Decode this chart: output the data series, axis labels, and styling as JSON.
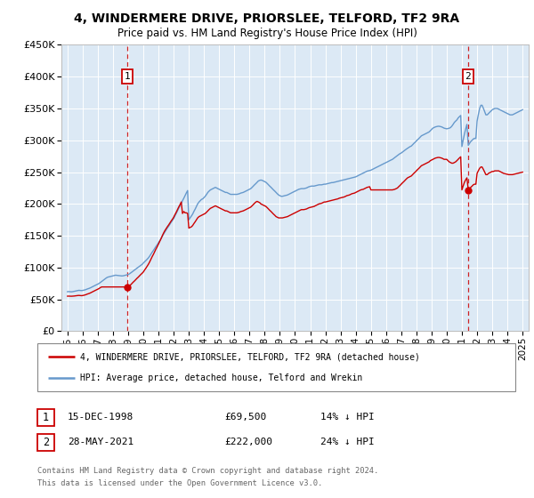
{
  "title": "4, WINDERMERE DRIVE, PRIORSLEE, TELFORD, TF2 9RA",
  "subtitle": "Price paid vs. HM Land Registry's House Price Index (HPI)",
  "sale1_year": 1998.96,
  "sale1_price": 69500,
  "sale2_year": 2021.41,
  "sale2_price": 222000,
  "legend_line1": "4, WINDERMERE DRIVE, PRIORSLEE, TELFORD, TF2 9RA (detached house)",
  "legend_line2": "HPI: Average price, detached house, Telford and Wrekin",
  "table_row1_date": "15-DEC-1998",
  "table_row1_price": "£69,500",
  "table_row1_hpi": "14% ↓ HPI",
  "table_row2_date": "28-MAY-2021",
  "table_row2_price": "£222,000",
  "table_row2_hpi": "24% ↓ HPI",
  "footer1": "Contains HM Land Registry data © Crown copyright and database right 2024.",
  "footer2": "This data is licensed under the Open Government Licence v3.0.",
  "chart_bg": "#dce9f5",
  "red_color": "#cc0000",
  "blue_color": "#6699cc",
  "box_color": "#cc0000",
  "vline_color": "#cc0000",
  "grid_color": "#ffffff",
  "hpi_x": [
    1995.0,
    1995.08,
    1995.17,
    1995.25,
    1995.33,
    1995.42,
    1995.5,
    1995.58,
    1995.67,
    1995.75,
    1995.83,
    1995.92,
    1996.0,
    1996.08,
    1996.17,
    1996.25,
    1996.33,
    1996.42,
    1996.5,
    1996.58,
    1996.67,
    1996.75,
    1996.83,
    1996.92,
    1997.0,
    1997.08,
    1997.17,
    1997.25,
    1997.33,
    1997.42,
    1997.5,
    1997.58,
    1997.67,
    1997.75,
    1997.83,
    1997.92,
    1998.0,
    1998.08,
    1998.17,
    1998.25,
    1998.33,
    1998.42,
    1998.5,
    1998.58,
    1998.67,
    1998.75,
    1998.83,
    1998.92,
    1999.0,
    1999.08,
    1999.17,
    1999.25,
    1999.33,
    1999.42,
    1999.5,
    1999.58,
    1999.67,
    1999.75,
    1999.83,
    1999.92,
    2000.0,
    2000.08,
    2000.17,
    2000.25,
    2000.33,
    2000.42,
    2000.5,
    2000.58,
    2000.67,
    2000.75,
    2000.83,
    2000.92,
    2001.0,
    2001.08,
    2001.17,
    2001.25,
    2001.33,
    2001.42,
    2001.5,
    2001.58,
    2001.67,
    2001.75,
    2001.83,
    2001.92,
    2002.0,
    2002.08,
    2002.17,
    2002.25,
    2002.33,
    2002.42,
    2002.5,
    2002.58,
    2002.67,
    2002.75,
    2002.83,
    2002.92,
    2003.0,
    2003.08,
    2003.17,
    2003.25,
    2003.33,
    2003.42,
    2003.5,
    2003.58,
    2003.67,
    2003.75,
    2003.83,
    2003.92,
    2004.0,
    2004.08,
    2004.17,
    2004.25,
    2004.33,
    2004.42,
    2004.5,
    2004.58,
    2004.67,
    2004.75,
    2004.83,
    2004.92,
    2005.0,
    2005.08,
    2005.17,
    2005.25,
    2005.33,
    2005.42,
    2005.5,
    2005.58,
    2005.67,
    2005.75,
    2005.83,
    2005.92,
    2006.0,
    2006.08,
    2006.17,
    2006.25,
    2006.33,
    2006.42,
    2006.5,
    2006.58,
    2006.67,
    2006.75,
    2006.83,
    2006.92,
    2007.0,
    2007.08,
    2007.17,
    2007.25,
    2007.33,
    2007.42,
    2007.5,
    2007.58,
    2007.67,
    2007.75,
    2007.83,
    2007.92,
    2008.0,
    2008.08,
    2008.17,
    2008.25,
    2008.33,
    2008.42,
    2008.5,
    2008.58,
    2008.67,
    2008.75,
    2008.83,
    2008.92,
    2009.0,
    2009.08,
    2009.17,
    2009.25,
    2009.33,
    2009.42,
    2009.5,
    2009.58,
    2009.67,
    2009.75,
    2009.83,
    2009.92,
    2010.0,
    2010.08,
    2010.17,
    2010.25,
    2010.33,
    2010.42,
    2010.5,
    2010.58,
    2010.67,
    2010.75,
    2010.83,
    2010.92,
    2011.0,
    2011.08,
    2011.17,
    2011.25,
    2011.33,
    2011.42,
    2011.5,
    2011.58,
    2011.67,
    2011.75,
    2011.83,
    2011.92,
    2012.0,
    2012.08,
    2012.17,
    2012.25,
    2012.33,
    2012.42,
    2012.5,
    2012.58,
    2012.67,
    2012.75,
    2012.83,
    2012.92,
    2013.0,
    2013.08,
    2013.17,
    2013.25,
    2013.33,
    2013.42,
    2013.5,
    2013.58,
    2013.67,
    2013.75,
    2013.83,
    2013.92,
    2014.0,
    2014.08,
    2014.17,
    2014.25,
    2014.33,
    2014.42,
    2014.5,
    2014.58,
    2014.67,
    2014.75,
    2014.83,
    2014.92,
    2015.0,
    2015.08,
    2015.17,
    2015.25,
    2015.33,
    2015.42,
    2015.5,
    2015.58,
    2015.67,
    2015.75,
    2015.83,
    2015.92,
    2016.0,
    2016.08,
    2016.17,
    2016.25,
    2016.33,
    2016.42,
    2016.5,
    2016.58,
    2016.67,
    2016.75,
    2016.83,
    2016.92,
    2017.0,
    2017.08,
    2017.17,
    2017.25,
    2017.33,
    2017.42,
    2017.5,
    2017.58,
    2017.67,
    2017.75,
    2017.83,
    2017.92,
    2018.0,
    2018.08,
    2018.17,
    2018.25,
    2018.33,
    2018.42,
    2018.5,
    2018.58,
    2018.67,
    2018.75,
    2018.83,
    2018.92,
    2019.0,
    2019.08,
    2019.17,
    2019.25,
    2019.33,
    2019.42,
    2019.5,
    2019.58,
    2019.67,
    2019.75,
    2019.83,
    2019.92,
    2020.0,
    2020.08,
    2020.17,
    2020.25,
    2020.33,
    2020.42,
    2020.5,
    2020.58,
    2020.67,
    2020.75,
    2020.83,
    2020.92,
    2021.0,
    2021.08,
    2021.17,
    2021.25,
    2021.33,
    2021.42,
    2021.5,
    2021.58,
    2021.67,
    2021.75,
    2021.83,
    2021.92,
    2022.0,
    2022.08,
    2022.17,
    2022.25,
    2022.33,
    2022.42,
    2022.5,
    2022.58,
    2022.67,
    2022.75,
    2022.83,
    2022.92,
    2023.0,
    2023.08,
    2023.17,
    2023.25,
    2023.33,
    2023.42,
    2023.5,
    2023.58,
    2023.67,
    2023.75,
    2023.83,
    2023.92,
    2024.0,
    2024.08,
    2024.17,
    2024.25,
    2024.33,
    2024.42,
    2024.5,
    2024.58,
    2024.67,
    2024.75,
    2024.83,
    2024.92,
    2025.0
  ],
  "hpi_y": [
    62000,
    62200,
    62000,
    61800,
    62000,
    62500,
    63000,
    63500,
    64000,
    64200,
    64000,
    63800,
    64000,
    64500,
    65000,
    65800,
    66500,
    67200,
    68000,
    69000,
    70000,
    71000,
    72000,
    73000,
    74000,
    75000,
    76500,
    78000,
    79500,
    81000,
    82500,
    84000,
    85000,
    85500,
    86000,
    86500,
    87000,
    87500,
    88000,
    87800,
    87500,
    87200,
    87000,
    86800,
    87000,
    87500,
    88000,
    88500,
    89000,
    90000,
    91500,
    93000,
    94500,
    96000,
    97500,
    99000,
    100500,
    102000,
    103500,
    105000,
    107000,
    109000,
    111000,
    113000,
    115000,
    118000,
    121000,
    124000,
    127000,
    130000,
    133000,
    136000,
    139000,
    142000,
    145500,
    149000,
    152500,
    156000,
    159000,
    162000,
    165000,
    168000,
    171000,
    174000,
    177000,
    181000,
    185000,
    189000,
    193000,
    197000,
    201000,
    205000,
    209000,
    213000,
    217000,
    221000,
    175000,
    178000,
    181000,
    184000,
    188000,
    192000,
    196000,
    200000,
    203000,
    205000,
    207000,
    208000,
    210000,
    212000,
    215000,
    218000,
    220000,
    222000,
    223000,
    224000,
    225000,
    226000,
    225000,
    224000,
    223000,
    222000,
    221000,
    220000,
    219000,
    218000,
    218000,
    217000,
    216000,
    215000,
    215000,
    215000,
    215000,
    215000,
    215000,
    215500,
    216000,
    217000,
    217500,
    218000,
    219000,
    220000,
    221000,
    222000,
    223000,
    224000,
    226000,
    228000,
    230000,
    232000,
    234000,
    236000,
    237000,
    237500,
    237000,
    236000,
    235000,
    234000,
    232000,
    230000,
    228000,
    226000,
    224000,
    222000,
    220000,
    218000,
    216000,
    214000,
    213000,
    212000,
    212000,
    212500,
    213000,
    213500,
    214000,
    215000,
    216000,
    217000,
    218000,
    219000,
    220000,
    221000,
    222000,
    223000,
    223500,
    224000,
    224000,
    224000,
    224500,
    225000,
    226000,
    227000,
    227500,
    228000,
    228000,
    228000,
    228500,
    229000,
    229500,
    230000,
    230000,
    230000,
    230500,
    231000,
    231000,
    231500,
    232000,
    232500,
    233000,
    233500,
    233500,
    234000,
    234500,
    235000,
    235500,
    236000,
    236500,
    237000,
    237500,
    238000,
    238500,
    239000,
    239500,
    240000,
    240500,
    241000,
    241500,
    242000,
    242500,
    243500,
    244500,
    245500,
    246500,
    247500,
    248500,
    249500,
    250500,
    251500,
    252000,
    252500,
    253000,
    254000,
    255000,
    256000,
    257000,
    258000,
    259000,
    260000,
    261000,
    262000,
    263000,
    264000,
    265000,
    266000,
    267000,
    268000,
    269000,
    270000,
    271500,
    273000,
    274500,
    276000,
    277500,
    279000,
    280000,
    281500,
    283000,
    284500,
    286000,
    287500,
    289000,
    290000,
    291000,
    293000,
    295000,
    297000,
    299000,
    301000,
    303000,
    305000,
    307000,
    308000,
    309000,
    310000,
    311000,
    312000,
    313000,
    315000,
    317000,
    319000,
    320000,
    321000,
    321500,
    322000,
    322000,
    321500,
    321000,
    320000,
    319000,
    318500,
    318000,
    318500,
    319000,
    320000,
    322000,
    325000,
    328000,
    330000,
    332000,
    335000,
    337000,
    339000,
    290000,
    300000,
    310000,
    318000,
    325000,
    292000,
    295000,
    298000,
    300000,
    302000,
    303000,
    303000,
    330000,
    340000,
    350000,
    355000,
    355000,
    350000,
    345000,
    340000,
    340000,
    342000,
    344000,
    346000,
    348000,
    349000,
    350000,
    350000,
    350000,
    349000,
    348000,
    347000,
    346000,
    345000,
    344000,
    343000,
    342000,
    341000,
    340000,
    340000,
    340000,
    341000,
    342000,
    343000,
    344000,
    345000,
    346000,
    347000,
    348000
  ],
  "red_y_raw": [
    55000,
    55100,
    55000,
    54900,
    55000,
    55200,
    55500,
    55800,
    56000,
    56200,
    56000,
    55800,
    56000,
    56500,
    57000,
    57800,
    58500,
    59200,
    60000,
    61000,
    62000,
    63000,
    64000,
    65000,
    66000,
    67000,
    68500,
    69500,
    69500,
    69500,
    69500,
    69500,
    69500,
    69500,
    69500,
    69500,
    69500,
    69500,
    69500,
    69500,
    69500,
    69500,
    69500,
    69500,
    69500,
    69500,
    69500,
    69500,
    70000,
    71000,
    73000,
    75000,
    77000,
    79000,
    81000,
    83000,
    85000,
    87000,
    89000,
    91000,
    93000,
    96000,
    99000,
    102000,
    105000,
    109000,
    113000,
    117000,
    121000,
    125000,
    129000,
    133000,
    137000,
    141000,
    145500,
    150000,
    154000,
    158000,
    161000,
    164000,
    167000,
    170000,
    173000,
    176000,
    179000,
    183000,
    187000,
    191000,
    195000,
    199000,
    203000,
    185000,
    188000,
    186000,
    186000,
    185000,
    162000,
    163000,
    164000,
    166000,
    169000,
    172000,
    175000,
    178000,
    180000,
    181000,
    182000,
    183000,
    184000,
    185000,
    187000,
    189000,
    191000,
    193000,
    194000,
    195000,
    196000,
    197000,
    196000,
    195000,
    194000,
    193000,
    192000,
    191000,
    190000,
    189000,
    189000,
    188000,
    187000,
    186000,
    186000,
    186000,
    186000,
    186000,
    186000,
    186500,
    187000,
    188000,
    188500,
    189000,
    190000,
    191000,
    192000,
    193000,
    194000,
    195000,
    197000,
    199000,
    201000,
    203000,
    204000,
    203000,
    202000,
    200000,
    199000,
    198000,
    197000,
    196000,
    194000,
    192000,
    190000,
    188000,
    186000,
    184000,
    182000,
    180000,
    179000,
    178000,
    178000,
    178000,
    178000,
    178500,
    179000,
    179500,
    180000,
    181000,
    182000,
    183000,
    184000,
    185000,
    186000,
    187000,
    188000,
    189000,
    190000,
    191000,
    191000,
    191000,
    191500,
    192000,
    193000,
    194000,
    194500,
    195000,
    195500,
    196000,
    197000,
    198000,
    199000,
    200000,
    200500,
    201000,
    202000,
    203000,
    203000,
    203500,
    204000,
    204500,
    205000,
    205500,
    206000,
    206500,
    207000,
    207500,
    208000,
    209000,
    209500,
    210000,
    210500,
    211000,
    212000,
    213000,
    213500,
    214000,
    215000,
    216000,
    216500,
    217000,
    218000,
    219000,
    220000,
    221000,
    222000,
    222500,
    223000,
    224000,
    225000,
    226000,
    226500,
    227000,
    222000,
    222000,
    222000,
    222000,
    222000,
    222000,
    222000,
    222000,
    222000,
    222000,
    222000,
    222000,
    222000,
    222000,
    222000,
    222000,
    222000,
    222000,
    222500,
    223000,
    224000,
    225000,
    227000,
    229000,
    231000,
    233000,
    235000,
    237000,
    239000,
    241000,
    242000,
    243000,
    244000,
    246000,
    248000,
    250000,
    252000,
    254000,
    256000,
    258000,
    260000,
    261000,
    262000,
    263000,
    264000,
    265000,
    266000,
    268000,
    269000,
    270000,
    271000,
    272000,
    272500,
    273000,
    273000,
    272500,
    272000,
    271000,
    270000,
    270000,
    270000,
    268000,
    266000,
    265000,
    264000,
    264000,
    265000,
    266000,
    268000,
    270000,
    272000,
    274000,
    222000,
    228000,
    234000,
    238000,
    241000,
    222000,
    224000,
    226000,
    228000,
    230000,
    231000,
    231000,
    248000,
    252000,
    256000,
    258000,
    258000,
    254000,
    250000,
    246000,
    246000,
    248000,
    249000,
    250000,
    251000,
    251000,
    252000,
    252000,
    252000,
    252000,
    251000,
    250000,
    249000,
    248000,
    247500,
    247000,
    246500,
    246000,
    246000,
    246000,
    246000,
    246500,
    247000,
    247500,
    248000,
    248500,
    249000,
    249500,
    250000
  ]
}
